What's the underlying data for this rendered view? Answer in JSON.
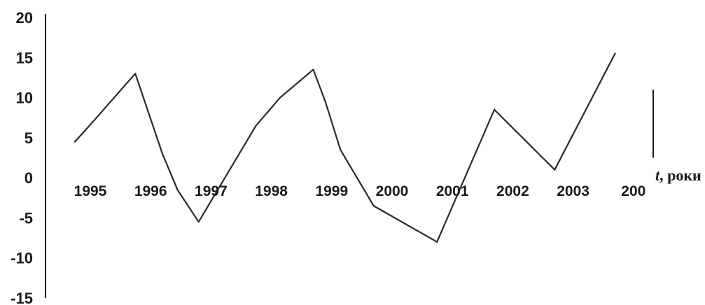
{
  "chart_data": {
    "type": "line",
    "xlabel_prefix": "t",
    "xlabel_suffix": ", роки",
    "ylabel": "",
    "ylim": [
      -15,
      20
    ],
    "yticks": [
      "20",
      "15",
      "10",
      "5",
      "0",
      "-5",
      "-10",
      "-15"
    ],
    "ytick_values": [
      20,
      15,
      10,
      5,
      0,
      -5,
      -10,
      -15
    ],
    "categories": [
      "1995",
      "1996",
      "1997",
      "1998",
      "1999",
      "2000",
      "2001",
      "2002",
      "2003",
      "200"
    ],
    "x_positions": [
      0,
      1,
      2,
      3,
      4,
      5,
      6,
      7,
      8,
      9
    ],
    "series": [
      {
        "points": [
          {
            "x": 0.0,
            "y": 4.5
          },
          {
            "x": 0.3,
            "y": 7.0
          },
          {
            "x": 1.0,
            "y": 13.0
          },
          {
            "x": 1.45,
            "y": 3.0
          },
          {
            "x": 1.7,
            "y": -1.5
          },
          {
            "x": 2.05,
            "y": -5.5
          },
          {
            "x": 3.0,
            "y": 6.5
          },
          {
            "x": 3.4,
            "y": 10.0
          },
          {
            "x": 3.95,
            "y": 13.5
          },
          {
            "x": 4.15,
            "y": 9.5
          },
          {
            "x": 4.4,
            "y": 3.5
          },
          {
            "x": 4.95,
            "y": -3.5
          },
          {
            "x": 6.0,
            "y": -8.0
          },
          {
            "x": 6.95,
            "y": 8.5
          },
          {
            "x": 7.95,
            "y": 1.0
          },
          {
            "x": 8.95,
            "y": 15.5
          }
        ]
      }
    ],
    "grid": false,
    "color": "#2a2a2a"
  }
}
